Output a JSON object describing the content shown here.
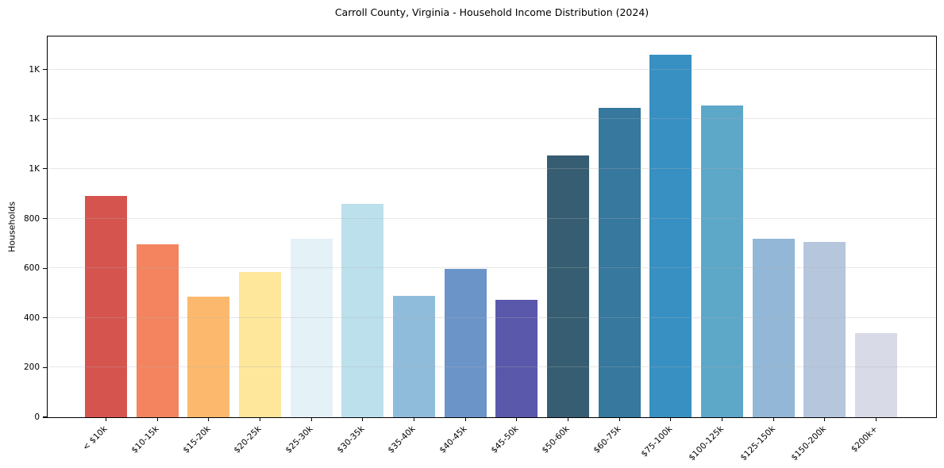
{
  "figure": {
    "title": "Carroll County, Virginia - Household Income Distribution (2024)"
  },
  "chart_data": {
    "type": "bar",
    "title": "Carroll County, Virginia - Household Income Distribution (2024)",
    "xlabel": "",
    "ylabel": "Households",
    "categories": [
      "< $10k",
      "$10-15k",
      "$15-20k",
      "$20-25k",
      "$25-30k",
      "$30-35k",
      "$35-40k",
      "$40-45k",
      "$45-50k",
      "$50-60k",
      "$60-75k",
      "$75-100k",
      "$100-125k",
      "$125-150k",
      "$150-200k",
      "$200k+"
    ],
    "values": [
      890,
      695,
      485,
      583,
      720,
      860,
      490,
      597,
      472,
      1055,
      1245,
      1460,
      1255,
      720,
      705,
      340
    ],
    "bar_colors": [
      "#d6544e",
      "#f4845f",
      "#fcb96d",
      "#fee79b",
      "#e4f1f7",
      "#bce0ec",
      "#8fbcdb",
      "#6b94c9",
      "#5a58ab",
      "#365d72",
      "#36789e",
      "#3890c2",
      "#5da7c9",
      "#93b7d7",
      "#b5c6dd",
      "#d8dae8"
    ],
    "ylim": [
      0,
      1533
    ],
    "yaxis": {
      "tick_values": [
        0,
        200,
        400,
        600,
        800,
        1000,
        1200,
        1400
      ],
      "tick_labels": [
        "0",
        "200",
        "400",
        "600",
        "800",
        "1K",
        "1K",
        "1K"
      ]
    },
    "grid": "horizontal, drawn above bars",
    "legend": "none",
    "x_tick_rotation": 45
  }
}
